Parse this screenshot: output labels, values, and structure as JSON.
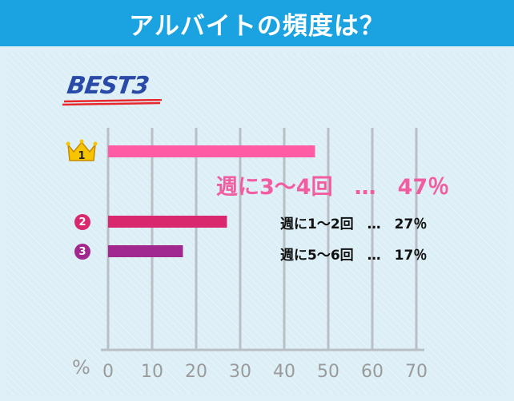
{
  "header": {
    "title": "アルバイトの頻度は？"
  },
  "badge": "BEST3",
  "colors": {
    "header_bg": "#1aa3e0",
    "bar_1": "#ff5ca5",
    "bar_2": "#d9286e",
    "bar_3": "#a0288e",
    "gridline": "#b9bfc4"
  },
  "icons": {
    "rank_1": "crown-icon"
  },
  "chart_data": {
    "type": "bar",
    "orientation": "horizontal",
    "xlim": [
      0,
      70
    ],
    "unit_label": "%",
    "ticks": [
      0,
      10,
      20,
      30,
      40,
      50,
      60,
      70
    ],
    "grid": true,
    "bars": [
      {
        "rank": "1",
        "label": "週に3～4回",
        "value": 47,
        "value_label": "47％"
      },
      {
        "rank": "2",
        "label": "週に1～2回",
        "value": 27,
        "value_label": "27％"
      },
      {
        "rank": "3",
        "label": "週に5～6回",
        "value": 17,
        "value_label": "17％"
      }
    ]
  },
  "labels": {
    "bar1": "週に3～4回　…　47％",
    "bar2": "週に1～2回　…　27％",
    "bar3": "週に5～6回　…　17％"
  }
}
